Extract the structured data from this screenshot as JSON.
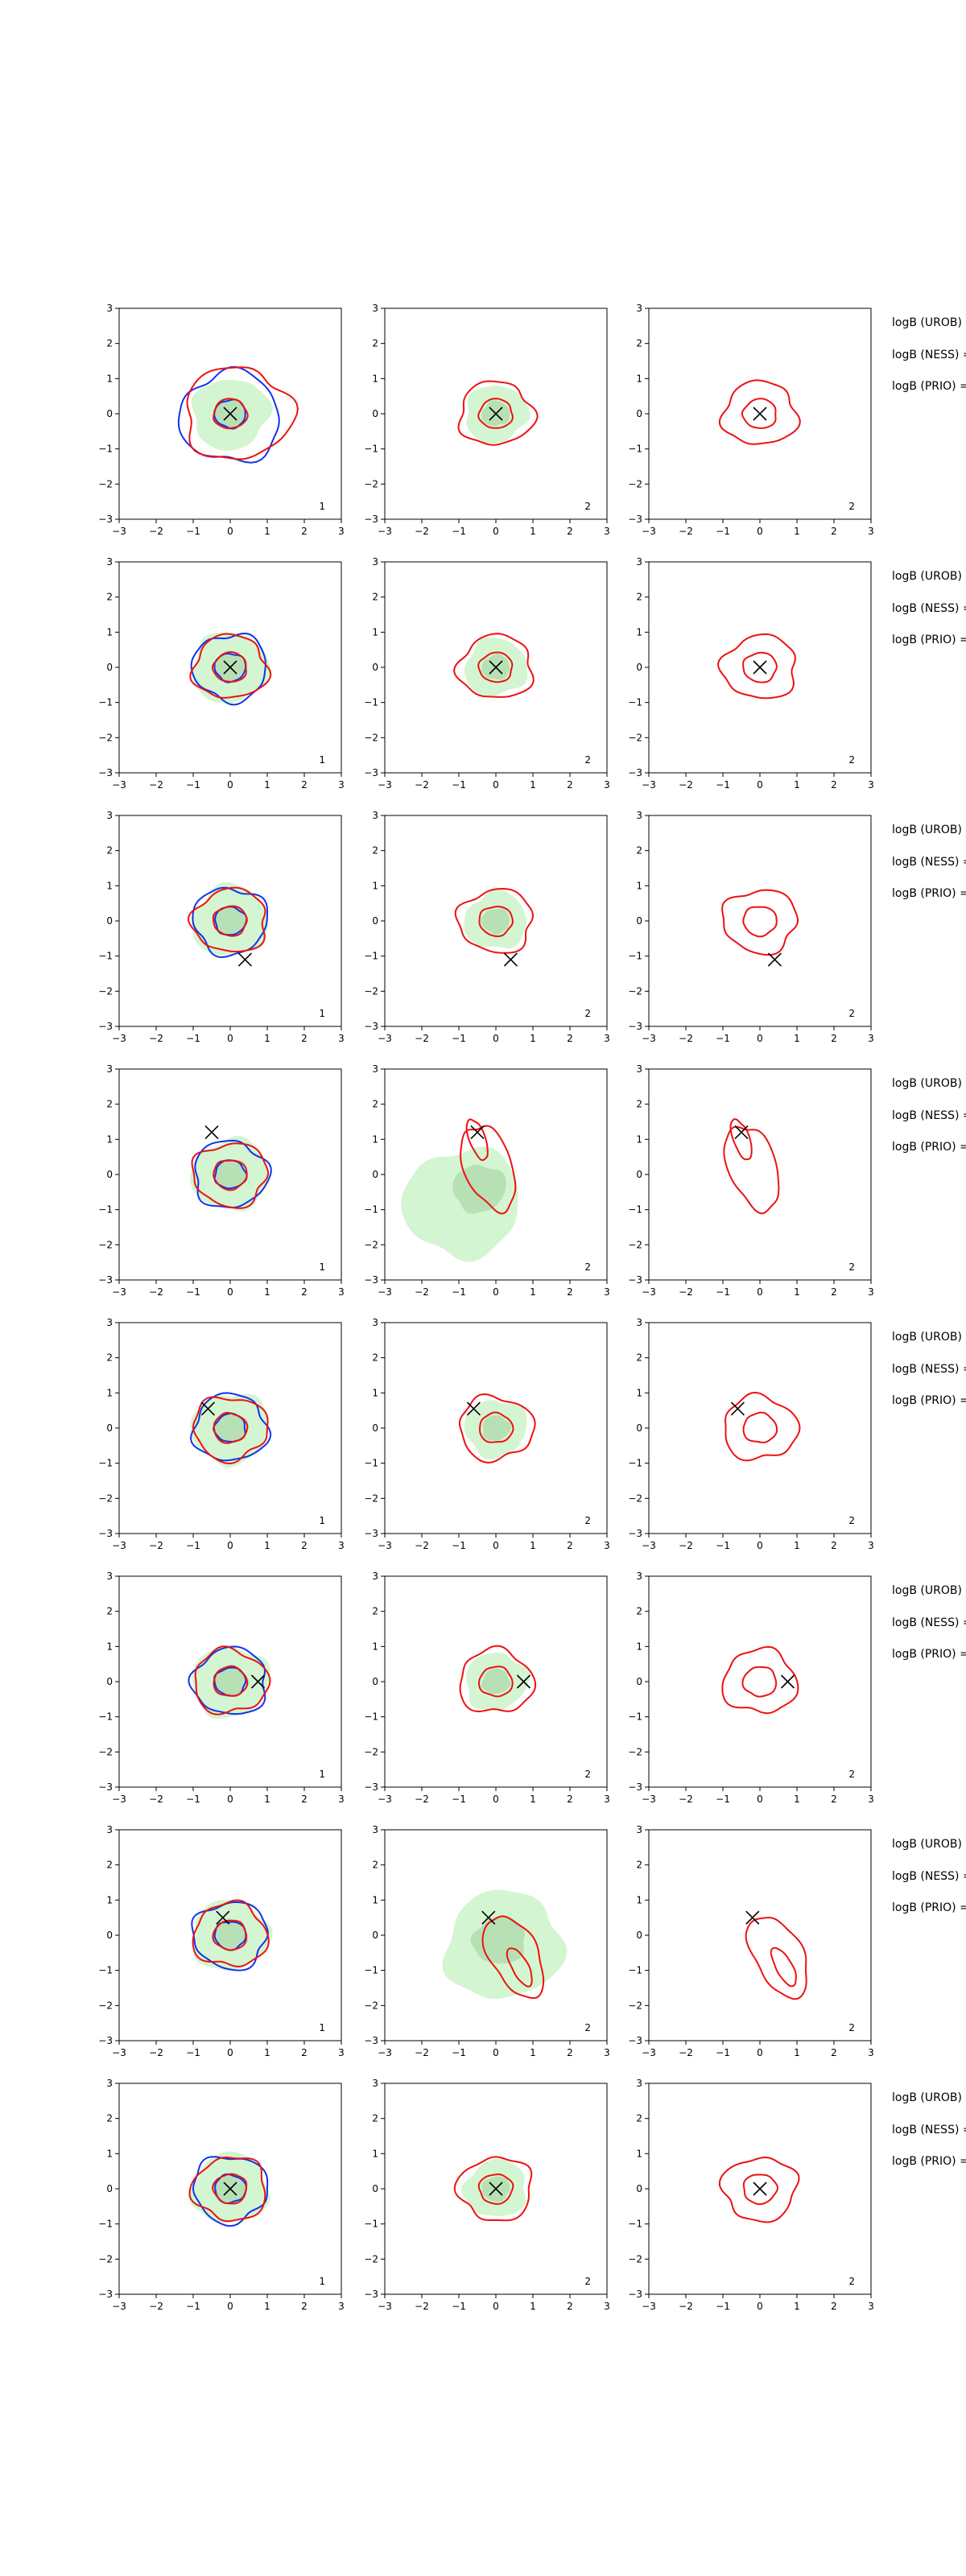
{
  "figure": {
    "columns": 3,
    "rows": 8,
    "side_text_template": [
      "logB (UROB) =",
      "logB (NESS) =",
      "logB (PRIO) ="
    ]
  },
  "colors": {
    "fill_outer": "#d4f5d1",
    "fill_inner": "#b8e0b5",
    "red": "#ee1111",
    "blue": "#1133ee",
    "marker": "#000000"
  },
  "chart_data": [
    {
      "type": "contour",
      "row": 1,
      "axes": {
        "xlim": [
          -3,
          3
        ],
        "ylim": [
          -3,
          3
        ],
        "xticks": [
          -3,
          -2,
          -1,
          0,
          1,
          2,
          3
        ],
        "yticks": [
          -3,
          -2,
          -1,
          0,
          1,
          2,
          3
        ],
        "grid": false
      },
      "marker": {
        "x": 0.0,
        "y": 0.0,
        "symbol": "x"
      },
      "panels": [
        {
          "col": 1,
          "tag": "1",
          "fill": true,
          "red": true,
          "blue": true
        },
        {
          "col": 2,
          "tag": "2",
          "fill": true,
          "red": true,
          "blue": false
        },
        {
          "col": 3,
          "tag": "2",
          "fill": false,
          "red": true,
          "blue": false
        }
      ],
      "side_text": [
        "logB (UROB) =",
        "logB (NESS) =",
        "logB (PRIO) ="
      ]
    },
    {
      "type": "contour",
      "row": 2,
      "axes": {
        "xlim": [
          -3,
          3
        ],
        "ylim": [
          -3,
          3
        ],
        "xticks": [
          -3,
          -2,
          -1,
          0,
          1,
          2,
          3
        ],
        "yticks": [
          -3,
          -2,
          -1,
          0,
          1,
          2,
          3
        ],
        "grid": false
      },
      "marker": {
        "x": 0.0,
        "y": 0.0,
        "symbol": "x"
      },
      "panels": [
        {
          "col": 1,
          "tag": "1",
          "fill": true,
          "red": true,
          "blue": true
        },
        {
          "col": 2,
          "tag": "2",
          "fill": true,
          "red": true,
          "blue": false
        },
        {
          "col": 3,
          "tag": "2",
          "fill": false,
          "red": true,
          "blue": false
        }
      ],
      "side_text": [
        "logB (UROB) =",
        "logB (NESS) =",
        "logB (PRIO) ="
      ]
    },
    {
      "type": "contour",
      "row": 3,
      "axes": {
        "xlim": [
          -3,
          3
        ],
        "ylim": [
          -3,
          3
        ],
        "xticks": [
          -3,
          -2,
          -1,
          0,
          1,
          2,
          3
        ],
        "yticks": [
          -3,
          -2,
          -1,
          0,
          1,
          2,
          3
        ],
        "grid": false
      },
      "marker": {
        "x": 0.4,
        "y": -1.1,
        "symbol": "x"
      },
      "panels": [
        {
          "col": 1,
          "tag": "1",
          "fill": true,
          "red": true,
          "blue": true
        },
        {
          "col": 2,
          "tag": "2",
          "fill": true,
          "red": true,
          "blue": false
        },
        {
          "col": 3,
          "tag": "2",
          "fill": false,
          "red": true,
          "blue": false
        }
      ],
      "side_text": [
        "logB (UROB) =",
        "logB (NESS) =",
        "logB (PRIO) ="
      ]
    },
    {
      "type": "contour",
      "row": 4,
      "axes": {
        "xlim": [
          -3,
          3
        ],
        "ylim": [
          -3,
          3
        ],
        "xticks": [
          -3,
          -2,
          -1,
          0,
          1,
          2,
          3
        ],
        "yticks": [
          -3,
          -2,
          -1,
          0,
          1,
          2,
          3
        ],
        "grid": false
      },
      "marker": {
        "x": -0.5,
        "y": 1.2,
        "symbol": "x"
      },
      "panels": [
        {
          "col": 1,
          "tag": "1",
          "fill": true,
          "red": true,
          "blue": true
        },
        {
          "col": 2,
          "tag": "2",
          "fill": true,
          "red": true,
          "blue": false
        },
        {
          "col": 3,
          "tag": "2",
          "fill": false,
          "red": true,
          "blue": false
        }
      ],
      "side_text": [
        "logB (UROB) =",
        "logB (NESS) =",
        "logB (PRIO) ="
      ]
    },
    {
      "type": "contour",
      "row": 5,
      "axes": {
        "xlim": [
          -3,
          3
        ],
        "ylim": [
          -3,
          3
        ],
        "xticks": [
          -3,
          -2,
          -1,
          0,
          1,
          2,
          3
        ],
        "yticks": [
          -3,
          -2,
          -1,
          0,
          1,
          2,
          3
        ],
        "grid": false
      },
      "marker": {
        "x": -0.6,
        "y": 0.55,
        "symbol": "x"
      },
      "panels": [
        {
          "col": 1,
          "tag": "1",
          "fill": true,
          "red": true,
          "blue": true
        },
        {
          "col": 2,
          "tag": "2",
          "fill": true,
          "red": true,
          "blue": false
        },
        {
          "col": 3,
          "tag": "2",
          "fill": false,
          "red": true,
          "blue": false
        }
      ],
      "side_text": [
        "logB (UROB) =",
        "logB (NESS) =",
        "logB (PRIO) ="
      ]
    },
    {
      "type": "contour",
      "row": 6,
      "axes": {
        "xlim": [
          -3,
          3
        ],
        "ylim": [
          -3,
          3
        ],
        "xticks": [
          -3,
          -2,
          -1,
          0,
          1,
          2,
          3
        ],
        "yticks": [
          -3,
          -2,
          -1,
          0,
          1,
          2,
          3
        ],
        "grid": false
      },
      "marker": {
        "x": 0.75,
        "y": 0.0,
        "symbol": "x"
      },
      "panels": [
        {
          "col": 1,
          "tag": "1",
          "fill": true,
          "red": true,
          "blue": true
        },
        {
          "col": 2,
          "tag": "2",
          "fill": true,
          "red": true,
          "blue": false
        },
        {
          "col": 3,
          "tag": "2",
          "fill": false,
          "red": true,
          "blue": false
        }
      ],
      "side_text": [
        "logB (UROB) =",
        "logB (NESS) =",
        "logB (PRIO) ="
      ]
    },
    {
      "type": "contour",
      "row": 7,
      "axes": {
        "xlim": [
          -3,
          3
        ],
        "ylim": [
          -3,
          3
        ],
        "xticks": [
          -3,
          -2,
          -1,
          0,
          1,
          2,
          3
        ],
        "yticks": [
          -3,
          -2,
          -1,
          0,
          1,
          2,
          3
        ],
        "grid": false
      },
      "marker": {
        "x": -0.2,
        "y": 0.5,
        "symbol": "x"
      },
      "panels": [
        {
          "col": 1,
          "tag": "1",
          "fill": true,
          "red": true,
          "blue": true
        },
        {
          "col": 2,
          "tag": "2",
          "fill": true,
          "red": true,
          "blue": false
        },
        {
          "col": 3,
          "tag": "2",
          "fill": false,
          "red": true,
          "blue": false
        }
      ],
      "side_text": [
        "logB (UROB) =",
        "logB (NESS) =",
        "logB (PRIO) ="
      ]
    },
    {
      "type": "contour",
      "row": 8,
      "axes": {
        "xlim": [
          -3,
          3
        ],
        "ylim": [
          -3,
          3
        ],
        "xticks": [
          -3,
          -2,
          -1,
          0,
          1,
          2,
          3
        ],
        "yticks": [
          -3,
          -2,
          -1,
          0,
          1,
          2,
          3
        ],
        "grid": false
      },
      "marker": {
        "x": 0.0,
        "y": 0.0,
        "symbol": "x"
      },
      "panels": [
        {
          "col": 1,
          "tag": "1",
          "fill": true,
          "red": true,
          "blue": true
        },
        {
          "col": 2,
          "tag": "2",
          "fill": true,
          "red": true,
          "blue": false
        },
        {
          "col": 3,
          "tag": "2",
          "fill": false,
          "red": true,
          "blue": false
        }
      ],
      "side_text": [
        "logB (UROB) =",
        "logB (NESS) =",
        "logB (PRIO) ="
      ]
    }
  ]
}
